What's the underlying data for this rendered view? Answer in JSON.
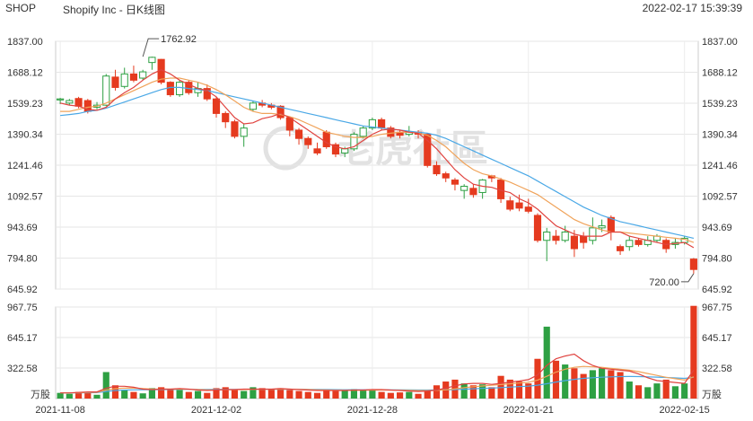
{
  "header": {
    "ticker": "SHOP",
    "title": "Shopify Inc - 日K线图",
    "datetime": "2022-02-17 15:39:39"
  },
  "watermark": "老虎社區",
  "chart_data": [
    {
      "type": "candlestick",
      "name": "price",
      "ylim": [
        645.92,
        1837.0
      ],
      "y_ticks": [
        "1837.00",
        "1688.12",
        "1539.23",
        "1390.34",
        "1241.46",
        "1092.57",
        "943.69",
        "794.80",
        "645.92"
      ],
      "x_ticks": [
        {
          "label": "2021-11-08",
          "index": 0
        },
        {
          "label": "2021-12-02",
          "index": 17
        },
        {
          "label": "2021-12-28",
          "index": 34
        },
        {
          "label": "2022-01-21",
          "index": 51
        },
        {
          "label": "2022-02-15",
          "index": 68
        }
      ],
      "annotations": [
        {
          "text": "1762.92",
          "index": 9,
          "value": 1762.92
        },
        {
          "text": "720.00",
          "index": 69,
          "value": 720.0
        }
      ],
      "colors": {
        "up": "#2ea043",
        "down": "#e53a1f",
        "ma_short": "#e0433f",
        "ma_mid": "#f0a35a",
        "ma_long": "#4aa8e6"
      },
      "candles": [
        [
          1555,
          1560,
          1565,
          1535
        ],
        [
          1540,
          1552,
          1560,
          1530
        ],
        [
          1562,
          1525,
          1570,
          1515
        ],
        [
          1552,
          1500,
          1560,
          1490
        ],
        [
          1520,
          1530,
          1545,
          1510
        ],
        [
          1530,
          1670,
          1680,
          1525
        ],
        [
          1665,
          1615,
          1700,
          1600
        ],
        [
          1620,
          1680,
          1710,
          1610
        ],
        [
          1680,
          1650,
          1720,
          1640
        ],
        [
          1660,
          1690,
          1700,
          1650
        ],
        [
          1735,
          1760,
          1763,
          1700
        ],
        [
          1750,
          1640,
          1752,
          1630
        ],
        [
          1640,
          1580,
          1645,
          1570
        ],
        [
          1580,
          1640,
          1650,
          1570
        ],
        [
          1640,
          1590,
          1650,
          1580
        ],
        [
          1590,
          1610,
          1640,
          1570
        ],
        [
          1610,
          1560,
          1630,
          1550
        ],
        [
          1560,
          1490,
          1570,
          1470
        ],
        [
          1490,
          1450,
          1500,
          1420
        ],
        [
          1450,
          1380,
          1460,
          1370
        ],
        [
          1380,
          1420,
          1440,
          1330
        ],
        [
          1510,
          1540,
          1550,
          1500
        ],
        [
          1540,
          1530,
          1555,
          1520
        ],
        [
          1530,
          1520,
          1540,
          1510
        ],
        [
          1525,
          1470,
          1530,
          1460
        ],
        [
          1470,
          1410,
          1475,
          1380
        ],
        [
          1410,
          1370,
          1420,
          1340
        ],
        [
          1370,
          1340,
          1380,
          1320
        ],
        [
          1320,
          1300,
          1350,
          1290
        ],
        [
          1400,
          1330,
          1410,
          1320
        ],
        [
          1340,
          1295,
          1350,
          1280
        ],
        [
          1300,
          1320,
          1330,
          1280
        ],
        [
          1320,
          1390,
          1400,
          1310
        ],
        [
          1380,
          1420,
          1430,
          1370
        ],
        [
          1420,
          1460,
          1470,
          1410
        ],
        [
          1460,
          1420,
          1470,
          1410
        ],
        [
          1420,
          1380,
          1430,
          1370
        ],
        [
          1400,
          1385,
          1410,
          1370
        ],
        [
          1390,
          1400,
          1430,
          1380
        ],
        [
          1400,
          1390,
          1410,
          1370
        ],
        [
          1390,
          1240,
          1395,
          1230
        ],
        [
          1240,
          1200,
          1260,
          1190
        ],
        [
          1200,
          1180,
          1210,
          1160
        ],
        [
          1170,
          1150,
          1180,
          1120
        ],
        [
          1120,
          1140,
          1150,
          1080
        ],
        [
          1130,
          1100,
          1150,
          1085
        ],
        [
          1110,
          1170,
          1175,
          1080
        ],
        [
          1190,
          1180,
          1195,
          1160
        ],
        [
          1170,
          1080,
          1180,
          1060
        ],
        [
          1070,
          1030,
          1090,
          1020
        ],
        [
          1060,
          1035,
          1100,
          1020
        ],
        [
          1040,
          1020,
          1080,
          1010
        ],
        [
          1000,
          880,
          1010,
          870
        ],
        [
          880,
          920,
          940,
          780
        ],
        [
          900,
          880,
          930,
          860
        ],
        [
          880,
          920,
          950,
          870
        ],
        [
          900,
          840,
          930,
          800
        ],
        [
          900,
          870,
          920,
          840
        ],
        [
          880,
          940,
          990,
          860
        ],
        [
          940,
          950,
          980,
          920
        ],
        [
          990,
          920,
          1000,
          880
        ],
        [
          850,
          830,
          860,
          810
        ],
        [
          850,
          880,
          900,
          830
        ],
        [
          880,
          860,
          890,
          850
        ],
        [
          860,
          880,
          900,
          850
        ],
        [
          880,
          900,
          910,
          870
        ],
        [
          880,
          840,
          890,
          820
        ],
        [
          860,
          870,
          890,
          840
        ],
        [
          870,
          890,
          900,
          860
        ],
        [
          790,
          740,
          795,
          720
        ]
      ],
      "ma_short": [
        1540,
        1530,
        1525,
        1510,
        1505,
        1520,
        1560,
        1590,
        1615,
        1650,
        1680,
        1700,
        1680,
        1650,
        1630,
        1610,
        1600,
        1570,
        1520,
        1470,
        1440,
        1445,
        1465,
        1475,
        1490,
        1470,
        1440,
        1410,
        1380,
        1350,
        1330,
        1320,
        1330,
        1360,
        1390,
        1410,
        1415,
        1410,
        1400,
        1395,
        1360,
        1320,
        1270,
        1220,
        1180,
        1150,
        1140,
        1135,
        1120,
        1110,
        1080,
        1060,
        1030,
        990,
        950,
        930,
        910,
        900,
        900,
        900,
        920,
        920,
        900,
        890,
        880,
        870,
        860,
        865,
        870,
        845
      ],
      "ma_mid": [
        1500,
        1500,
        1510,
        1520,
        1525,
        1540,
        1560,
        1580,
        1600,
        1620,
        1640,
        1655,
        1660,
        1660,
        1650,
        1640,
        1625,
        1605,
        1580,
        1550,
        1520,
        1500,
        1490,
        1490,
        1485,
        1475,
        1460,
        1440,
        1420,
        1400,
        1390,
        1380,
        1375,
        1375,
        1380,
        1390,
        1395,
        1400,
        1400,
        1395,
        1385,
        1360,
        1330,
        1290,
        1250,
        1220,
        1200,
        1190,
        1175,
        1160,
        1140,
        1120,
        1100,
        1070,
        1040,
        1010,
        980,
        960,
        945,
        930,
        920,
        920,
        915,
        910,
        905,
        900,
        895,
        890,
        885,
        870
      ],
      "ma_long": [
        1480,
        1485,
        1490,
        1500,
        1505,
        1515,
        1530,
        1545,
        1560,
        1575,
        1590,
        1605,
        1615,
        1615,
        1610,
        1605,
        1600,
        1590,
        1580,
        1570,
        1560,
        1550,
        1540,
        1530,
        1520,
        1510,
        1500,
        1490,
        1480,
        1470,
        1460,
        1450,
        1440,
        1430,
        1425,
        1420,
        1415,
        1410,
        1405,
        1400,
        1395,
        1385,
        1370,
        1350,
        1330,
        1310,
        1290,
        1270,
        1250,
        1230,
        1210,
        1190,
        1165,
        1140,
        1115,
        1090,
        1065,
        1040,
        1020,
        1000,
        985,
        970,
        960,
        950,
        940,
        930,
        920,
        910,
        900,
        890
      ]
    },
    {
      "type": "bar",
      "name": "volume",
      "unit": "万股",
      "ylim": [
        0,
        967.75
      ],
      "y_ticks": [
        "967.75",
        "645.17",
        "322.58"
      ],
      "colors": {
        "up": "#2ea043",
        "down": "#e53a1f",
        "ma_short": "#e0433f",
        "ma_mid": "#f0a35a",
        "ma_long": "#4aa8e6"
      },
      "volumes": [
        60,
        50,
        70,
        65,
        40,
        280,
        140,
        90,
        70,
        55,
        110,
        120,
        100,
        90,
        70,
        80,
        60,
        110,
        120,
        90,
        80,
        120,
        110,
        100,
        110,
        90,
        80,
        70,
        60,
        100,
        80,
        90,
        100,
        95,
        100,
        70,
        60,
        65,
        70,
        50,
        80,
        140,
        180,
        200,
        160,
        140,
        150,
        120,
        240,
        200,
        180,
        160,
        420,
        760,
        400,
        360,
        320,
        260,
        300,
        320,
        300,
        280,
        180,
        140,
        120,
        160,
        200,
        130,
        160,
        980
      ],
      "ma_short": [
        60,
        60,
        65,
        70,
        70,
        110,
        130,
        130,
        120,
        100,
        95,
        100,
        100,
        105,
        100,
        90,
        85,
        90,
        95,
        95,
        100,
        100,
        100,
        100,
        105,
        100,
        95,
        90,
        85,
        85,
        85,
        85,
        90,
        90,
        95,
        95,
        90,
        85,
        80,
        75,
        80,
        90,
        110,
        135,
        155,
        160,
        160,
        150,
        160,
        175,
        185,
        200,
        250,
        350,
        420,
        450,
        470,
        400,
        350,
        320,
        310,
        300,
        290,
        260,
        220,
        190,
        180,
        170,
        160,
        300
      ],
      "ma_mid": [
        60,
        60,
        62,
        65,
        66,
        90,
        105,
        110,
        110,
        105,
        100,
        100,
        100,
        100,
        98,
        95,
        92,
        92,
        93,
        93,
        95,
        97,
        98,
        99,
        100,
        100,
        98,
        95,
        92,
        90,
        88,
        87,
        87,
        88,
        89,
        90,
        89,
        88,
        86,
        84,
        84,
        86,
        92,
        102,
        115,
        125,
        133,
        140,
        148,
        156,
        164,
        172,
        195,
        235,
        280,
        310,
        330,
        340,
        335,
        330,
        320,
        310,
        300,
        285,
        265,
        245,
        225,
        210,
        195,
        230
      ],
      "ma_long": [
        60,
        60,
        61,
        62,
        63,
        75,
        85,
        90,
        92,
        93,
        94,
        95,
        96,
        97,
        97,
        97,
        96,
        96,
        96,
        96,
        97,
        97,
        98,
        98,
        98,
        98,
        98,
        97,
        96,
        95,
        94,
        93,
        93,
        93,
        93,
        93,
        92,
        92,
        91,
        90,
        90,
        90,
        92,
        95,
        99,
        103,
        107,
        111,
        116,
        121,
        126,
        131,
        141,
        157,
        175,
        190,
        203,
        213,
        220,
        226,
        230,
        232,
        233,
        232,
        230,
        227,
        223,
        218,
        213,
        225
      ]
    }
  ]
}
